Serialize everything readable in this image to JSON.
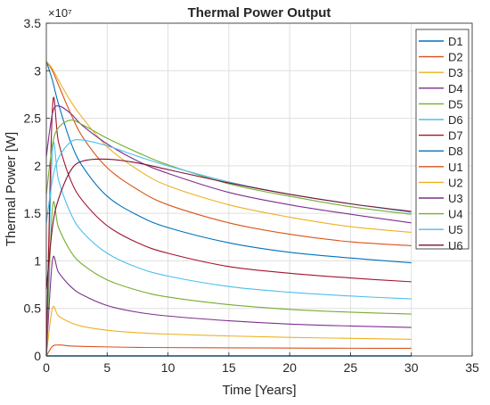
{
  "chart_data": {
    "type": "line",
    "title": "Thermal Power Output",
    "xlabel": "Time [Years]",
    "ylabel": "Thermal Power [W]",
    "y_exponent_label": "×10⁷",
    "y_scale": 10000000,
    "xlim": [
      0,
      35
    ],
    "ylim": [
      0,
      35000000
    ],
    "x_ticks": [
      0,
      5,
      10,
      15,
      20,
      25,
      30,
      35
    ],
    "y_ticks": [
      0,
      5000000,
      10000000,
      15000000,
      20000000,
      25000000,
      30000000,
      35000000
    ],
    "x_tick_labels": [
      "0",
      "5",
      "10",
      "15",
      "20",
      "25",
      "30",
      "35"
    ],
    "y_tick_labels": [
      "0",
      "0.5",
      "1",
      "1.5",
      "2",
      "2.5",
      "3",
      "3.5"
    ],
    "grid": true,
    "legend_position": "top-right",
    "x": [
      0,
      0.5,
      1,
      2,
      3,
      5,
      7.5,
      10,
      15,
      20,
      25,
      30
    ],
    "series": [
      {
        "name": "D1",
        "color": "#0072BD",
        "values": [
          0,
          0,
          0,
          0,
          0,
          0,
          0,
          0,
          0,
          0,
          0,
          0
        ]
      },
      {
        "name": "D2",
        "color": "#D95319",
        "values": [
          0,
          1000000,
          1150000,
          1050000,
          1000000,
          950000,
          900000,
          880000,
          850000,
          830000,
          810000,
          800000
        ]
      },
      {
        "name": "D3",
        "color": "#EDB120",
        "values": [
          0,
          5000000,
          4200000,
          3500000,
          3100000,
          2700000,
          2450000,
          2300000,
          2100000,
          1950000,
          1850000,
          1750000
        ]
      },
      {
        "name": "D4",
        "color": "#7E2F8E",
        "values": [
          0,
          10000000,
          8800000,
          7300000,
          6400000,
          5300000,
          4600000,
          4200000,
          3700000,
          3350000,
          3150000,
          3000000
        ]
      },
      {
        "name": "D5",
        "color": "#77AC30",
        "values": [
          0,
          15500000,
          13500000,
          11000000,
          9600000,
          8000000,
          6900000,
          6200000,
          5400000,
          4900000,
          4600000,
          4400000
        ]
      },
      {
        "name": "D6",
        "color": "#4DBEEE",
        "values": [
          0,
          21500000,
          18500000,
          15000000,
          13000000,
          10800000,
          9300000,
          8400000,
          7300000,
          6700000,
          6300000,
          6000000
        ]
      },
      {
        "name": "D7",
        "color": "#A2142F",
        "values": [
          0,
          26000000,
          22500000,
          18500000,
          16300000,
          13700000,
          11900000,
          10800000,
          9400000,
          8700000,
          8200000,
          7800000
        ]
      },
      {
        "name": "D8",
        "color": "#0072BD",
        "values": [
          31000000,
          29000000,
          26500000,
          22500000,
          19900000,
          16800000,
          14800000,
          13500000,
          11900000,
          10900000,
          10300000,
          9800000
        ]
      },
      {
        "name": "U1",
        "color": "#D95319",
        "values": [
          31000000,
          30000000,
          28500000,
          25500000,
          23000000,
          19800000,
          17500000,
          15900000,
          14000000,
          12800000,
          12000000,
          11600000
        ]
      },
      {
        "name": "U2",
        "color": "#EDB120",
        "values": [
          31000000,
          30200000,
          29000000,
          26800000,
          25000000,
          22000000,
          19600000,
          17900000,
          15900000,
          14600000,
          13600000,
          13000000
        ]
      },
      {
        "name": "U3",
        "color": "#7E2F8E",
        "values": [
          21000000,
          25500000,
          26300000,
          25500000,
          24200000,
          22300000,
          20500000,
          19200000,
          17200000,
          15900000,
          14900000,
          14000000
        ]
      },
      {
        "name": "U4",
        "color": "#77AC30",
        "values": [
          17000000,
          22200000,
          24000000,
          24800000,
          24300000,
          22900000,
          21400000,
          20100000,
          18100000,
          16800000,
          15700000,
          14900000
        ]
      },
      {
        "name": "U5",
        "color": "#4DBEEE",
        "values": [
          14000000,
          18500000,
          20800000,
          22500000,
          22700000,
          22100000,
          21000000,
          20000000,
          18300000,
          17000000,
          16000000,
          15100000
        ]
      },
      {
        "name": "U6",
        "color": "#7E0F2F",
        "values": [
          7000000,
          13500000,
          16500000,
          19500000,
          20500000,
          20700000,
          20300000,
          19600000,
          18200000,
          17000000,
          16000000,
          15200000
        ]
      }
    ]
  }
}
